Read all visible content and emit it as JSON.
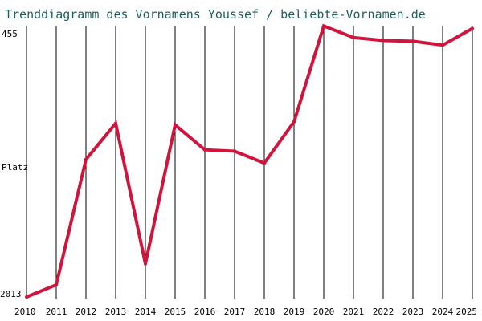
{
  "chart_data": {
    "type": "line",
    "title": "Trenddiagramm des Vornamens Youssef / beliebte-Vornamen.de",
    "ylabel": "Platz",
    "y_tick_labels": [
      "455",
      "2013"
    ],
    "ylim": [
      2013,
      455
    ],
    "x": [
      "2010",
      "2011",
      "2012",
      "2013",
      "2014",
      "2015",
      "2016",
      "2017",
      "2018",
      "2019",
      "2020",
      "2021",
      "2022",
      "2023",
      "2024",
      "2025"
    ],
    "series": [
      {
        "values": [
          2013,
          1944,
          1228,
          1022,
          1824,
          1031,
          1173,
          1181,
          1249,
          1013,
          466,
          532,
          549,
          553,
          575,
          480
        ]
      }
    ],
    "grid": "vertical",
    "legend": "none",
    "colors": {
      "line": "#d0143c",
      "title": "#1f5f5f",
      "grid": "#000000"
    }
  }
}
